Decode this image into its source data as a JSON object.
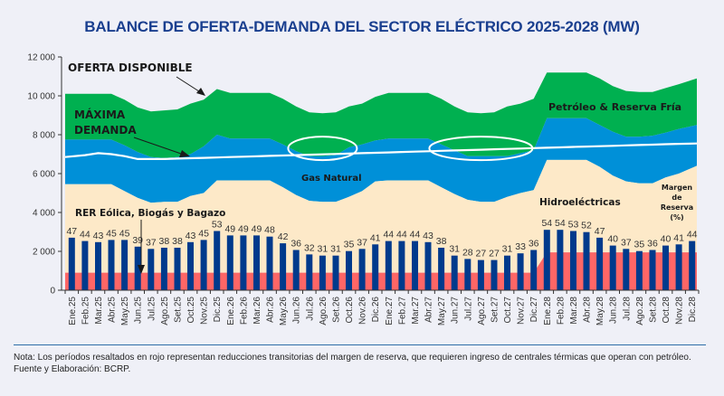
{
  "title": "BALANCE DE OFERTA-DEMANDA DEL SECTOR ELÉCTRICO 2025-2028 (MW)",
  "notes": {
    "nota": "Nota: Los períodos resaltados en rojo representan reducciones transitorias del margen de reserva, que requieren ingreso de centrales térmicas que operan con petróleo.",
    "fuente": "Fuente y Elaboración: BCRP."
  },
  "colors": {
    "petroleo": "#00b050",
    "gas": "#0090d8",
    "hidro": "#fde9c8",
    "rer": "#ff6666",
    "bars": "#003a8c",
    "demanda": "#ffffff",
    "title": "#1a3f8f"
  },
  "chart_data": {
    "type": "area",
    "title": "BALANCE DE OFERTA-DEMANDA DEL SECTOR ELÉCTRICO 2025-2028 (MW)",
    "xlabel": "",
    "ylabel": "MW",
    "ylim": [
      0,
      12000
    ],
    "yticks": [
      0,
      2000,
      4000,
      6000,
      8000,
      10000,
      12000
    ],
    "ytick_labels": [
      "0",
      "2 000",
      "4 000",
      "6 000",
      "8 000",
      "10 000",
      "12 000"
    ],
    "grid": false,
    "categories": [
      "Ene.25",
      "Feb.25",
      "Mar.25",
      "Abr.25",
      "May.25",
      "Jun.25",
      "Jul.25",
      "Ago.25",
      "Set.25",
      "Oct.25",
      "Nov.25",
      "Dic.25",
      "Ene.26",
      "Feb.26",
      "Mar.26",
      "Abr.26",
      "May.26",
      "Jun.26",
      "Jul.26",
      "Ago.26",
      "Set.26",
      "Oct.26",
      "Nov.26",
      "Dic.26",
      "Ene.27",
      "Feb.27",
      "Mar.27",
      "Abr.27",
      "May.27",
      "Jun.27",
      "Jul.27",
      "Ago.27",
      "Set.27",
      "Oct.27",
      "Nov.27",
      "Dic.27",
      "Ene.28",
      "Feb.28",
      "Mar.28",
      "Abr.28",
      "May.28",
      "Jun.28",
      "Jul.28",
      "Ago.28",
      "Set.28",
      "Oct.28",
      "Nov.28",
      "Dic.28"
    ],
    "stacked_tops": {
      "rer_eolica_biogas_bagazo": [
        900,
        900,
        900,
        900,
        900,
        900,
        900,
        900,
        900,
        900,
        900,
        900,
        900,
        900,
        900,
        900,
        900,
        900,
        900,
        900,
        900,
        900,
        900,
        900,
        900,
        900,
        900,
        900,
        900,
        900,
        900,
        900,
        900,
        900,
        900,
        900,
        1950,
        1950,
        1950,
        1950,
        1950,
        1950,
        1950,
        1950,
        1950,
        1950,
        1950,
        1950
      ],
      "hidroelectricas": [
        5450,
        5450,
        5450,
        5450,
        5100,
        4750,
        4500,
        4550,
        4550,
        4850,
        5000,
        5650,
        5650,
        5650,
        5650,
        5650,
        5300,
        4900,
        4600,
        4550,
        4550,
        4800,
        5100,
        5600,
        5650,
        5650,
        5650,
        5650,
        5300,
        4950,
        4650,
        4550,
        4550,
        4800,
        5000,
        5150,
        6700,
        6700,
        6700,
        6700,
        6350,
        5900,
        5600,
        5500,
        5500,
        5800,
        6000,
        6400
      ],
      "gas_natural": [
        7750,
        7750,
        7750,
        7750,
        7450,
        7100,
        6850,
        6800,
        6850,
        7000,
        7400,
        8000,
        7800,
        7800,
        7800,
        7800,
        7500,
        7150,
        6900,
        6900,
        6950,
        7350,
        7500,
        7700,
        7800,
        7800,
        7800,
        7800,
        7500,
        7200,
        6900,
        6900,
        6900,
        6900,
        7050,
        7200,
        8850,
        8850,
        8850,
        8850,
        8500,
        8150,
        7900,
        7900,
        7950,
        8100,
        8300,
        8500
      ],
      "petroleo_reserva_fria": [
        10100,
        10100,
        10100,
        10100,
        9800,
        9400,
        9200,
        9250,
        9300,
        9600,
        9800,
        10350,
        10150,
        10150,
        10150,
        10150,
        9850,
        9450,
        9150,
        9100,
        9150,
        9450,
        9600,
        9950,
        10150,
        10150,
        10150,
        10150,
        9850,
        9450,
        9150,
        9100,
        9150,
        9450,
        9600,
        9850,
        11200,
        11200,
        11200,
        11200,
        10900,
        10500,
        10250,
        10200,
        10200,
        10400,
        10600,
        10900
      ]
    },
    "series": [
      {
        "name": "Máxima Demanda",
        "type": "line",
        "values": [
          6850,
          6950,
          7050,
          7000,
          6900,
          6750,
          6750,
          6750,
          6770,
          6790,
          6810,
          6830,
          6850,
          6870,
          6890,
          6910,
          6930,
          6950,
          6970,
          6990,
          7010,
          7030,
          7050,
          7070,
          7090,
          7110,
          7130,
          7150,
          7170,
          7190,
          7210,
          7230,
          7250,
          7270,
          7290,
          7310,
          7330,
          7350,
          7370,
          7390,
          7410,
          7430,
          7450,
          7470,
          7490,
          7510,
          7530,
          7550
        ]
      },
      {
        "name": "Margen de Reserva (%)",
        "type": "bar",
        "values": [
          47,
          44,
          43,
          45,
          45,
          39,
          37,
          38,
          38,
          43,
          45,
          53,
          49,
          49,
          49,
          48,
          42,
          36,
          32,
          31,
          31,
          35,
          37,
          41,
          44,
          44,
          44,
          43,
          38,
          31,
          28,
          27,
          27,
          31,
          33,
          36,
          54,
          54,
          53,
          52,
          47,
          40,
          37,
          35,
          36,
          40,
          41,
          44
        ]
      }
    ],
    "layer_labels": {
      "oferta": "OFERTA DISPONIBLE",
      "demanda_1": "MÁXIMA",
      "demanda_2": "DEMANDA",
      "petroleo": "Petróleo & Reserva Fría",
      "gas": "Gas Natural",
      "hidro": "Hidroeléctricas",
      "rer": "RER Eólica, Biogás y Bagazo",
      "margen_1": "Margen",
      "margen_2": "de",
      "margen_3": "Reserva",
      "margen_4": "(%)"
    },
    "annotations": [
      "Ellipses highlight Jul.26-Set.26 and Jun.27-Oct.27 where demand approaches supply"
    ],
    "legend": "inline"
  }
}
